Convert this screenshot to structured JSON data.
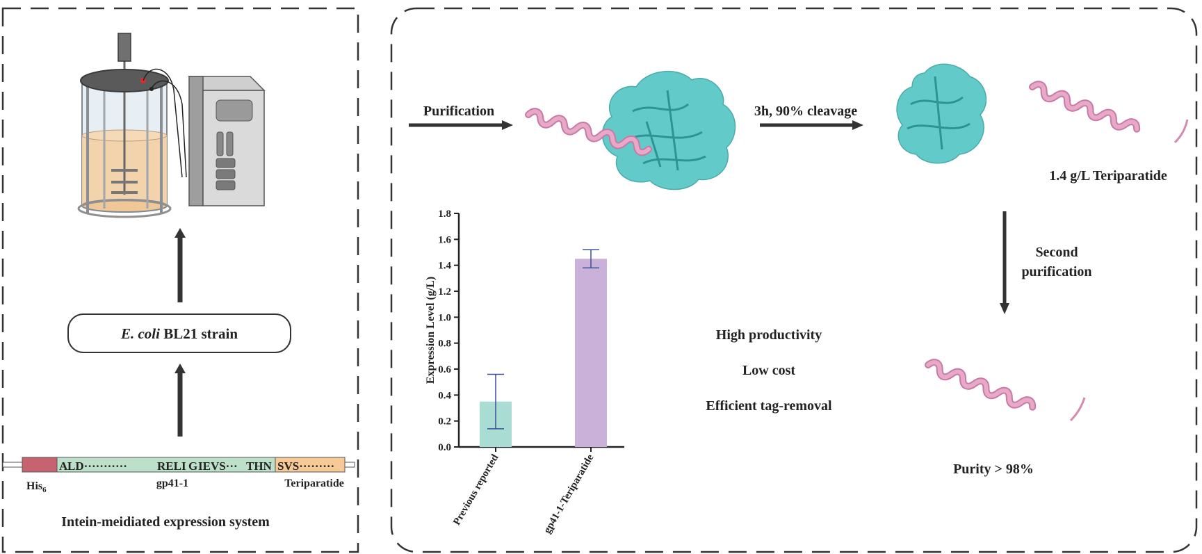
{
  "left_panel": {
    "strain_box": {
      "italic_part": "E. coli",
      "rest": " BL21 strain"
    },
    "construct": {
      "segments": {
        "ala": "A",
        "mid1": "LD···········",
        "reli": "RELI",
        "g": "G",
        "ievs": "IEVS···",
        "thn": "THN",
        "svs": "SVS·········"
      },
      "labels": {
        "his_main": "His",
        "his_sub": "6",
        "gp41": "gp41-1",
        "teri": "Teriparatide"
      },
      "colors": {
        "his": "#c7626f",
        "gp41": "#bde0c8",
        "teri": "#f6c996",
        "highlight": "#e02020"
      }
    },
    "caption": "Intein-meidiated expression system"
  },
  "right_panel": {
    "step1_label": "Purification",
    "step2_label": "3h, 90% cleavage",
    "yield_label": "1.4 g/L Teriparatide",
    "step3_label_line1": "Second",
    "step3_label_line2": "purification",
    "purity_label": "Purity > 98%",
    "benefits": [
      "High productivity",
      "Low cost",
      "Efficient tag-removal"
    ],
    "colors": {
      "protein": "#48c1c1",
      "helix": "#e7a9c7"
    }
  },
  "chart_data": {
    "type": "bar",
    "categories": [
      "Previous reported",
      "gp41-1-Teriparatide"
    ],
    "values": [
      0.35,
      1.45
    ],
    "errors_low": [
      0.14,
      1.38
    ],
    "errors_high": [
      0.56,
      1.52
    ],
    "ylabel": "Expression Level (g/L)",
    "ylim": [
      0,
      1.8
    ],
    "yticks": [
      "0.0",
      "0.2",
      "0.4",
      "0.6",
      "0.8",
      "1.0",
      "1.2",
      "1.4",
      "1.6",
      "1.8"
    ],
    "bar_colors": [
      "#a9dcd2",
      "#c9b1da"
    ],
    "error_color": "#3a4f94"
  }
}
